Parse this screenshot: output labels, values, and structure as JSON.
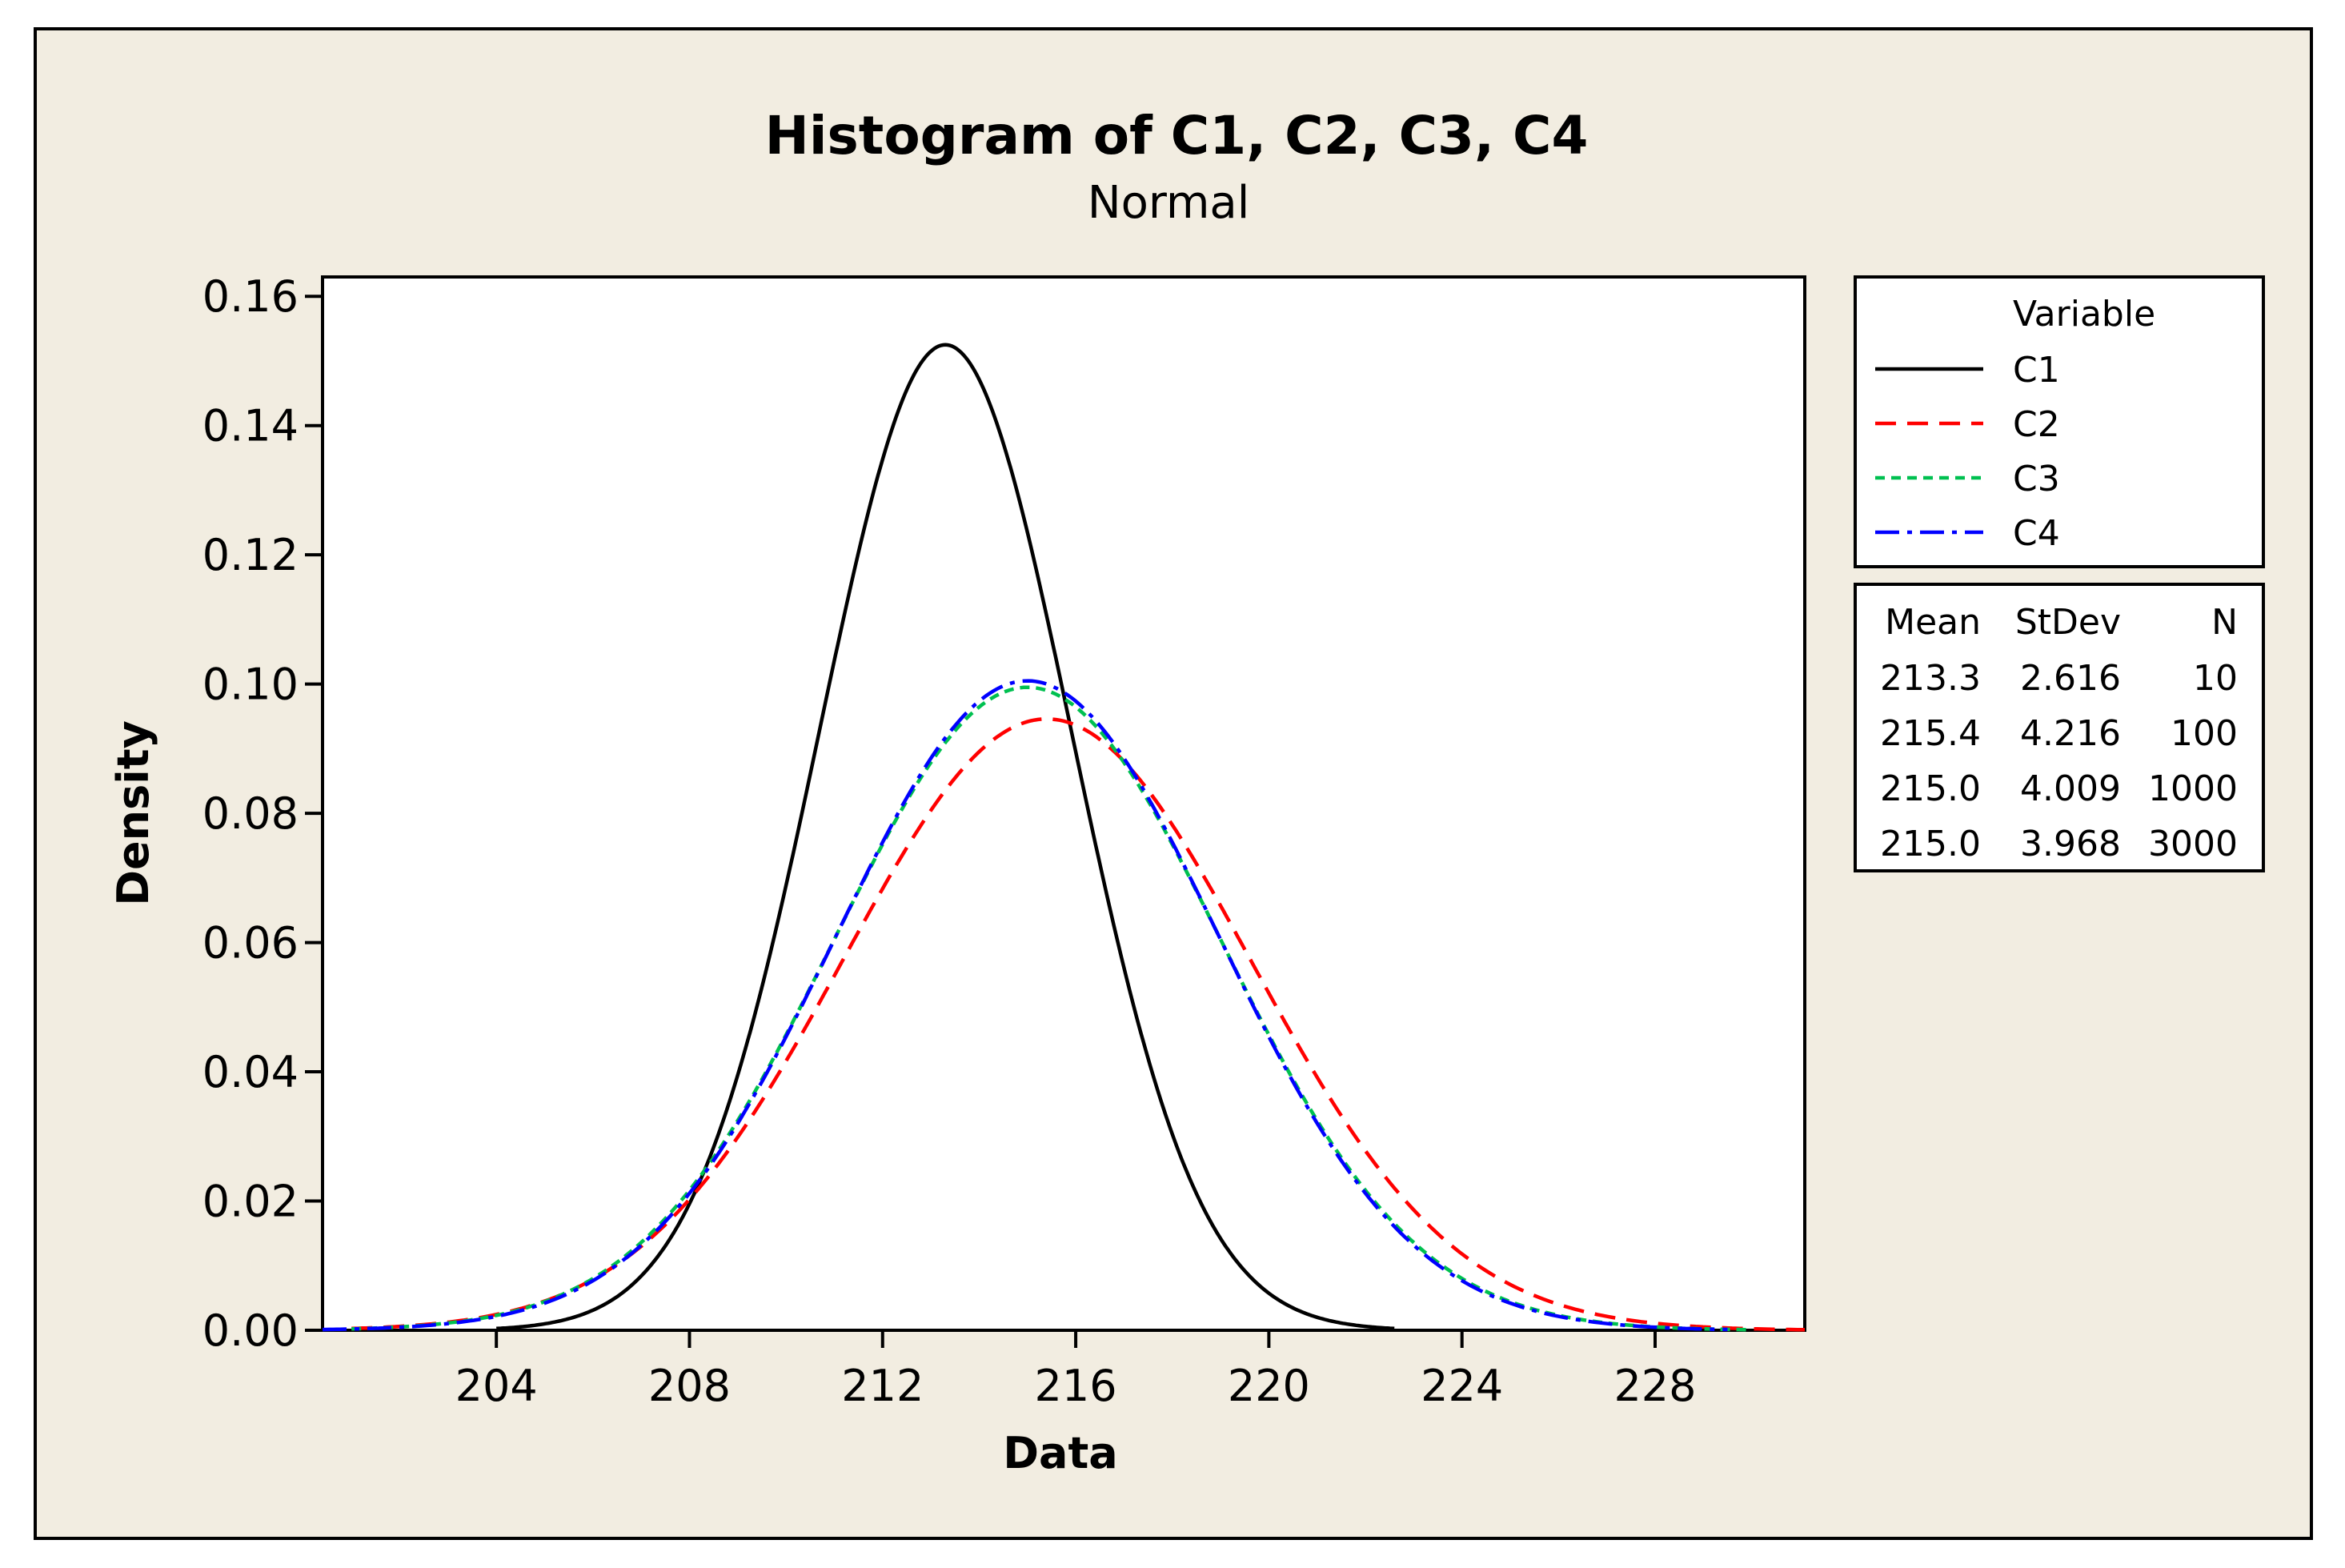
{
  "chart_data": {
    "type": "line",
    "title": "Histogram of C1, C2, C3, C4",
    "subtitle": "Normal",
    "xlabel": "Data",
    "ylabel": "Density",
    "xlim": [
      200.4,
      231.1
    ],
    "ylim": [
      0,
      0.163
    ],
    "x_ticks": [
      204,
      208,
      212,
      216,
      220,
      224,
      228
    ],
    "x_tick_labels": [
      "204",
      "208",
      "212",
      "216",
      "220",
      "224",
      "228"
    ],
    "y_ticks": [
      0,
      0.02,
      0.04,
      0.06,
      0.08,
      0.1,
      0.12,
      0.14,
      0.16
    ],
    "y_tick_labels": [
      "0.00",
      "0.02",
      "0.04",
      "0.06",
      "0.08",
      "0.10",
      "0.12",
      "0.14",
      "0.16"
    ],
    "series": [
      {
        "name": "C1",
        "color": "#000000",
        "dash": "solid",
        "mean": 213.3,
        "stdev": 2.616,
        "n": 10,
        "peak": 0.1525,
        "x_range": [
          204.0,
          222.6
        ]
      },
      {
        "name": "C2",
        "color": "#ff0000",
        "dash": "long-dash",
        "mean": 215.4,
        "stdev": 4.216,
        "n": 100,
        "peak": 0.0946,
        "x_range": [
          201.0,
          231.1
        ]
      },
      {
        "name": "C3",
        "color": "#00c050",
        "dash": "dotted",
        "mean": 215.0,
        "stdev": 4.009,
        "n": 1000,
        "peak": 0.0995,
        "x_range": [
          201.0,
          230.0
        ]
      },
      {
        "name": "C4",
        "color": "#0000ff",
        "dash": "dash-dot",
        "mean": 215.0,
        "stdev": 3.968,
        "n": 3000,
        "peak": 0.1005,
        "x_range": [
          200.4,
          229.5
        ]
      }
    ]
  },
  "legend": {
    "header": "Variable",
    "stats_headers": [
      "Mean",
      "StDev",
      "N"
    ],
    "rows": [
      {
        "name": "C1",
        "mean": "213.3",
        "stdev": "2.616",
        "n": "10"
      },
      {
        "name": "C2",
        "mean": "215.4",
        "stdev": "4.216",
        "n": "100"
      },
      {
        "name": "C3",
        "mean": "215.0",
        "stdev": "4.009",
        "n": "1000"
      },
      {
        "name": "C4",
        "mean": "215.0",
        "stdev": "3.968",
        "n": "3000"
      }
    ]
  }
}
